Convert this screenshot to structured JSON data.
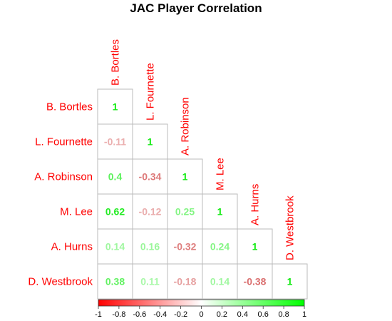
{
  "chart_data": {
    "type": "heatmap",
    "title": "JAC Player Correlation",
    "players": [
      "B. Bortles",
      "L. Fournette",
      "A. Robinson",
      "M. Lee",
      "A. Hurns",
      "D. Westbrook"
    ],
    "matrix": [
      [
        1
      ],
      [
        -0.11,
        1
      ],
      [
        0.4,
        -0.34,
        1
      ],
      [
        0.62,
        -0.12,
        0.25,
        1
      ],
      [
        0.14,
        0.16,
        -0.32,
        0.24,
        1
      ],
      [
        0.38,
        0.11,
        -0.18,
        0.14,
        -0.38,
        1
      ]
    ],
    "lower_triangle": true,
    "colorbar": {
      "range": [
        -1,
        1
      ],
      "ticks": [
        -1,
        -0.8,
        -0.6,
        -0.4,
        -0.2,
        0,
        0.2,
        0.4,
        0.6,
        0.8,
        1
      ],
      "colors": {
        "negative": "#ff0000",
        "zero": "#ffffff",
        "positive": "#00ff00"
      }
    },
    "label_color": "#ff0000",
    "grid_color": "#bbbbbb"
  }
}
